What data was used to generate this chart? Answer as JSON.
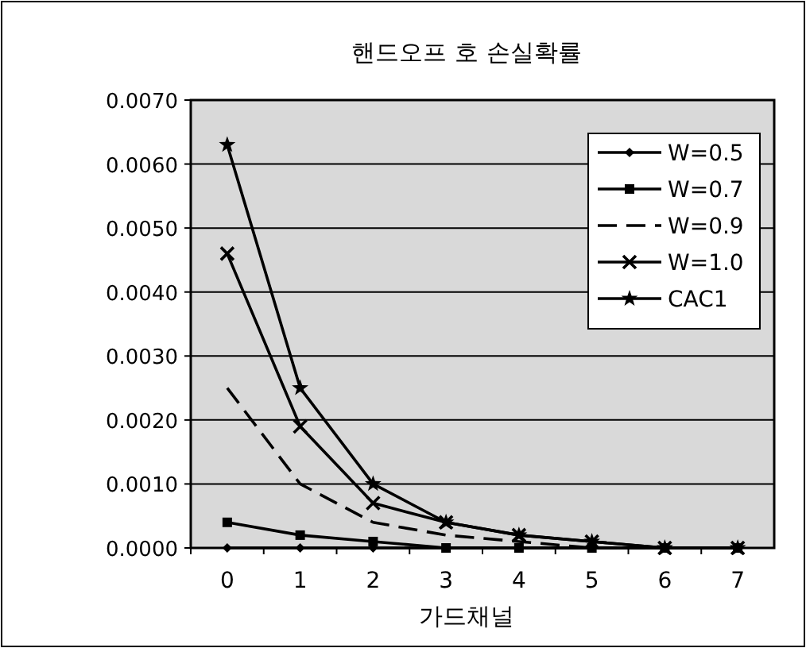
{
  "chart_data": {
    "type": "line",
    "title": "핸드오프 호 손실확률",
    "xlabel": "가드채널",
    "categories": [
      "0",
      "1",
      "2",
      "3",
      "4",
      "5",
      "6",
      "7"
    ],
    "ylim": [
      0,
      0.007
    ],
    "yticks": [
      {
        "value": 0,
        "label": "0.0000"
      },
      {
        "value": 0.001,
        "label": "0.0010"
      },
      {
        "value": 0.002,
        "label": "0.0020"
      },
      {
        "value": 0.003,
        "label": "0.0030"
      },
      {
        "value": 0.004,
        "label": "0.0040"
      },
      {
        "value": 0.005,
        "label": "0.0050"
      },
      {
        "value": 0.006,
        "label": "0.0060"
      },
      {
        "value": 0.007,
        "label": "0.0070"
      }
    ],
    "grid": "y",
    "legend": "top right",
    "series": [
      {
        "name": "W=0.5",
        "color": "#000000",
        "marker": "diamond",
        "line_style": "solid",
        "values": [
          0,
          0,
          0,
          0,
          0,
          0,
          0,
          0
        ]
      },
      {
        "name": "W=0.7",
        "color": "#000000",
        "marker": "square",
        "line_style": "solid",
        "values": [
          0.0004,
          0.0002,
          0.0001,
          0,
          0,
          0,
          0,
          0
        ]
      },
      {
        "name": "W=0.9",
        "color": "#000000",
        "marker": "none",
        "line_style": "dashed",
        "values": [
          0.0025,
          0.001,
          0.0004,
          0.0002,
          0.0001,
          0,
          0,
          0
        ]
      },
      {
        "name": "W=1.0",
        "color": "#000000",
        "marker": "cross",
        "line_style": "solid",
        "values": [
          0.0046,
          0.0019,
          0.0007,
          0.0004,
          0.0002,
          0.0001,
          0,
          0
        ]
      },
      {
        "name": "CAC1",
        "color": "#000000",
        "marker": "star",
        "line_style": "solid",
        "values": [
          0.0063,
          0.0025,
          0.001,
          0.0004,
          0.0002,
          0.0001,
          0,
          0
        ]
      }
    ]
  }
}
